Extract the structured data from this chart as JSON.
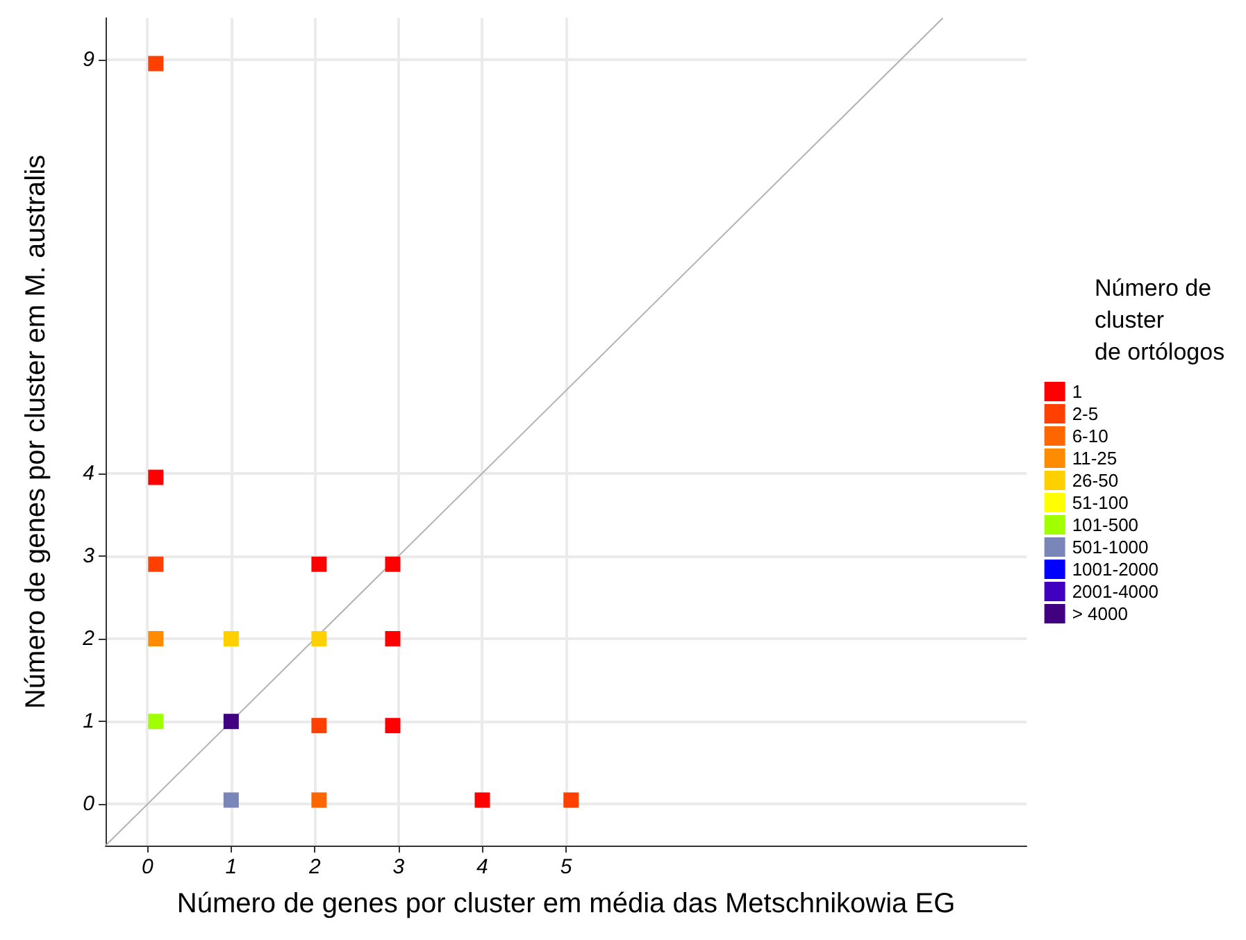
{
  "chart_data": {
    "type": "scatter",
    "xlabel": "Número de genes por cluster em média das Metschnikowia EG",
    "ylabel": "Número de genes por cluster em M. australis",
    "legend_title": "Número de\ncluster\nde ortólogos",
    "xlim": [
      -0.5,
      10.5
    ],
    "ylim": [
      -0.5,
      9.5
    ],
    "xticks": [
      0,
      1,
      2,
      3,
      4,
      5
    ],
    "yticks": [
      0,
      1,
      2,
      3,
      4,
      9
    ],
    "grid": true,
    "legend": "right",
    "marker": "square",
    "series": [
      {
        "name": "1",
        "color": "#ff0000",
        "x": [
          0.1,
          2.05,
          2.93,
          2.93,
          2.93,
          4.0
        ],
        "values": [
          3.95,
          2.9,
          2.9,
          2.0,
          0.95,
          0.05
        ]
      },
      {
        "name": "2-5",
        "color": "#ff4000",
        "x": [
          0.1,
          0.1,
          2.05,
          5.06
        ],
        "values": [
          8.95,
          2.9,
          0.95,
          0.05
        ]
      },
      {
        "name": "6-10",
        "color": "#ff6600",
        "x": [
          2.05
        ],
        "values": [
          0.05
        ]
      },
      {
        "name": "11-25",
        "color": "#ff8c00",
        "x": [
          0.1
        ],
        "values": [
          2.0
        ]
      },
      {
        "name": "26-50",
        "color": "#ffd000",
        "x": [
          1.0,
          2.05
        ],
        "values": [
          2.0,
          2.0
        ]
      },
      {
        "name": "51-100",
        "color": "#ffff00"
      },
      {
        "name": "101-500",
        "color": "#a0ff00",
        "x": [
          0.1
        ],
        "values": [
          1.0
        ]
      },
      {
        "name": "501-1000",
        "color": "#7b86b8",
        "x": [
          1.0
        ],
        "values": [
          0.05
        ]
      },
      {
        "name": "1001-2000",
        "color": "#0000ff"
      },
      {
        "name": "2001-4000",
        "color": "#4000c0"
      },
      {
        "name": "> 4000",
        "color": "#400080",
        "x": [
          1.0
        ],
        "values": [
          1.0
        ]
      },
      {
        "type": "line",
        "color": "#b3b3b3",
        "marker": "none",
        "x": [
          -0.5,
          9.5
        ],
        "values": [
          -0.5,
          9.5
        ]
      }
    ]
  }
}
